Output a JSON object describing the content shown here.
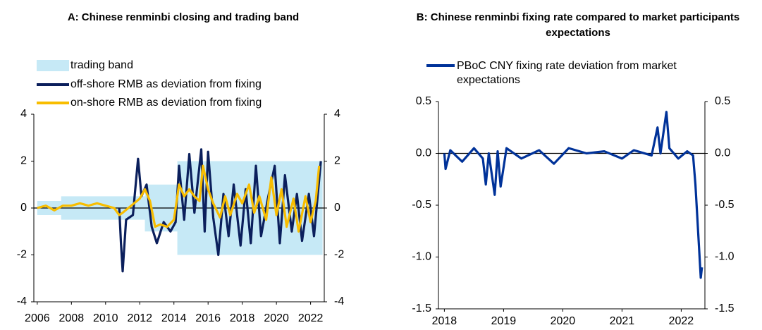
{
  "chart_data": [
    {
      "type": "line",
      "title": "A: Chinese renminbi closing and trading band",
      "xlim": [
        2005.8,
        2022.8
      ],
      "xticks": [
        2006,
        2008,
        2010,
        2012,
        2014,
        2016,
        2018,
        2020,
        2022
      ],
      "ylim": [
        -4,
        4
      ],
      "yticks": [
        -4,
        -2,
        0,
        2,
        4
      ],
      "y2lim": [
        -4,
        4
      ],
      "y2ticks": [
        -4,
        -2,
        0,
        2,
        4
      ],
      "series": [
        {
          "name": "trading band",
          "color": "#c6e9f6",
          "x": [
            2006,
            2007.4,
            2007.4,
            2012.3,
            2012.3,
            2014.2,
            2014.2,
            2022.7
          ],
          "upper": [
            0.3,
            0.3,
            0.5,
            0.5,
            1,
            1,
            2,
            2
          ],
          "lower": [
            -0.3,
            -0.3,
            -0.5,
            -0.5,
            -1,
            -1,
            -2,
            -2
          ]
        },
        {
          "name": "off-shore RMB as deviation from fixing",
          "color": "#0b1f5c",
          "x": [
            2010.8,
            2010.9,
            2011,
            2011.2,
            2011.6,
            2011.9,
            2012.1,
            2012.4,
            2012.7,
            2013,
            2013.4,
            2013.8,
            2014.1,
            2014.3,
            2014.6,
            2014.9,
            2015.2,
            2015.6,
            2015.8,
            2016,
            2016.3,
            2016.6,
            2016.9,
            2017.2,
            2017.5,
            2017.9,
            2018.2,
            2018.5,
            2018.8,
            2019.1,
            2019.5,
            2019.9,
            2020.2,
            2020.5,
            2020.9,
            2021.2,
            2021.5,
            2021.9,
            2022.2,
            2022.4,
            2022.6
          ],
          "values": [
            0,
            -1.5,
            -2.7,
            -0.5,
            -0.3,
            2.1,
            0.5,
            1.0,
            -0.8,
            -1.5,
            -0.6,
            -1.0,
            -0.6,
            1.8,
            -0.5,
            2.3,
            -0.2,
            2.5,
            -1,
            2.4,
            -0.4,
            -2.0,
            0.6,
            -1.2,
            1.0,
            -1.6,
            0.8,
            -1.5,
            1.8,
            -1.2,
            0.4,
            1.8,
            -1.5,
            1.4,
            -1.0,
            0.6,
            -1.4,
            0.6,
            -1.2,
            0.4,
            2.0
          ]
        },
        {
          "name": "on-shore RMB as deviation from fixing",
          "color": "#f8bd00",
          "x": [
            2006,
            2006.5,
            2007,
            2007.5,
            2008,
            2008.5,
            2009,
            2009.5,
            2010,
            2010.5,
            2010.8,
            2011,
            2011.5,
            2012,
            2012.3,
            2012.6,
            2012.9,
            2013.2,
            2013.6,
            2014,
            2014.3,
            2014.6,
            2014.9,
            2015.2,
            2015.5,
            2015.7,
            2016,
            2016.3,
            2016.7,
            2017,
            2017.3,
            2017.7,
            2018,
            2018.4,
            2018.7,
            2019,
            2019.4,
            2019.7,
            2020,
            2020.3,
            2020.6,
            2021,
            2021.3,
            2021.7,
            2022,
            2022.3,
            2022.5
          ],
          "values": [
            0,
            0.1,
            -0.1,
            0.1,
            0.1,
            0.2,
            0.1,
            0.2,
            0.1,
            0,
            -0.3,
            -0.2,
            0.1,
            0.4,
            0.8,
            0.3,
            -0.8,
            -0.7,
            -0.8,
            -0.5,
            1.0,
            0.5,
            0.8,
            0.5,
            0.3,
            1.8,
            0.8,
            0.2,
            -0.4,
            0.5,
            -0.3,
            0.6,
            0.2,
            1.0,
            -0.2,
            0.5,
            -0.5,
            1.3,
            -0.3,
            0.8,
            -0.8,
            0.4,
            -1,
            0.5,
            -0.6,
            0.3,
            1.8
          ]
        }
      ]
    },
    {
      "type": "line",
      "title": "B: Chinese renminbi fixing rate compared to market participants expectations",
      "xlim": [
        2017.9,
        2022.4
      ],
      "xticks": [
        2018,
        2019,
        2020,
        2021,
        2022
      ],
      "ylim": [
        -1.5,
        0.5
      ],
      "yticks": [
        {
          "value": -1.5,
          "label": "-1.5"
        },
        {
          "value": -1,
          "label": "-1.0"
        },
        {
          "value": -0.5,
          "label": "-0.5"
        },
        {
          "value": 0,
          "label": "0.0"
        },
        {
          "value": 0.5,
          "label": "0.5"
        }
      ],
      "y2lim": [
        -1.5,
        0.5
      ],
      "y2ticks": [
        {
          "value": -1.5,
          "label": "-1.5"
        },
        {
          "value": -1,
          "label": "-1.0"
        },
        {
          "value": -0.5,
          "label": "-0.5"
        },
        {
          "value": 0,
          "label": "0.0"
        },
        {
          "value": 0.5,
          "label": "0.5"
        }
      ],
      "series": [
        {
          "name": "PBoC CNY fixing rate deviation from market expectations",
          "color": "#003299",
          "x": [
            2018,
            2018.02,
            2018.1,
            2018.3,
            2018.5,
            2018.65,
            2018.7,
            2018.75,
            2018.85,
            2018.9,
            2018.95,
            2019.05,
            2019.3,
            2019.6,
            2019.85,
            2020.1,
            2020.4,
            2020.7,
            2021,
            2021.2,
            2021.5,
            2021.6,
            2021.65,
            2021.75,
            2021.8,
            2021.95,
            2022.1,
            2022.2,
            2022.24,
            2022.27,
            2022.3,
            2022.33,
            2022.35
          ],
          "values": [
            0,
            -0.15,
            0.03,
            -0.08,
            0.05,
            -0.05,
            -0.3,
            0,
            -0.4,
            0.02,
            -0.32,
            0.05,
            -0.05,
            0.03,
            -0.1,
            0.05,
            0,
            0.02,
            -0.05,
            0.03,
            -0.02,
            0.25,
            0,
            0.4,
            0.05,
            -0.05,
            0.02,
            -0.02,
            -0.3,
            -0.6,
            -0.9,
            -1.2,
            -1.1
          ]
        }
      ]
    }
  ]
}
